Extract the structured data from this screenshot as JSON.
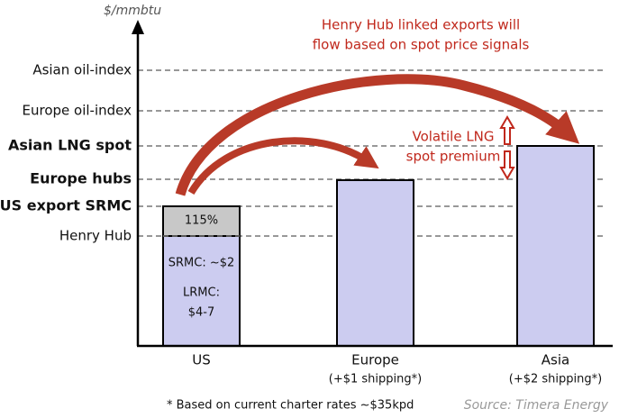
{
  "unit": "$/mmbtu",
  "levels": [
    {
      "label": "Asian oil-index",
      "bold": false
    },
    {
      "label": "Europe oil-index",
      "bold": false
    },
    {
      "label": "Asian LNG spot",
      "bold": true
    },
    {
      "label": "Europe hubs",
      "bold": true
    },
    {
      "label": "US export SRMC",
      "bold": true
    },
    {
      "label": "Henry Hub",
      "bold": false
    }
  ],
  "bars": [
    {
      "label": "US",
      "inner": [
        "115%",
        "SRMC: ~$2",
        "LRMC:",
        "$4-7"
      ]
    },
    {
      "label": "Europe",
      "note": "(+$1 shipping*)"
    },
    {
      "label": "Asia",
      "note": "(+$2 shipping*)"
    }
  ],
  "annotations": {
    "flow": [
      "Henry Hub linked exports will",
      "flow based on spot price signals"
    ],
    "premium": [
      "Volatile LNG",
      "spot premium"
    ]
  },
  "footnote": "* Based on current charter rates ~$35kpd",
  "source": "Source: Timera Energy"
}
